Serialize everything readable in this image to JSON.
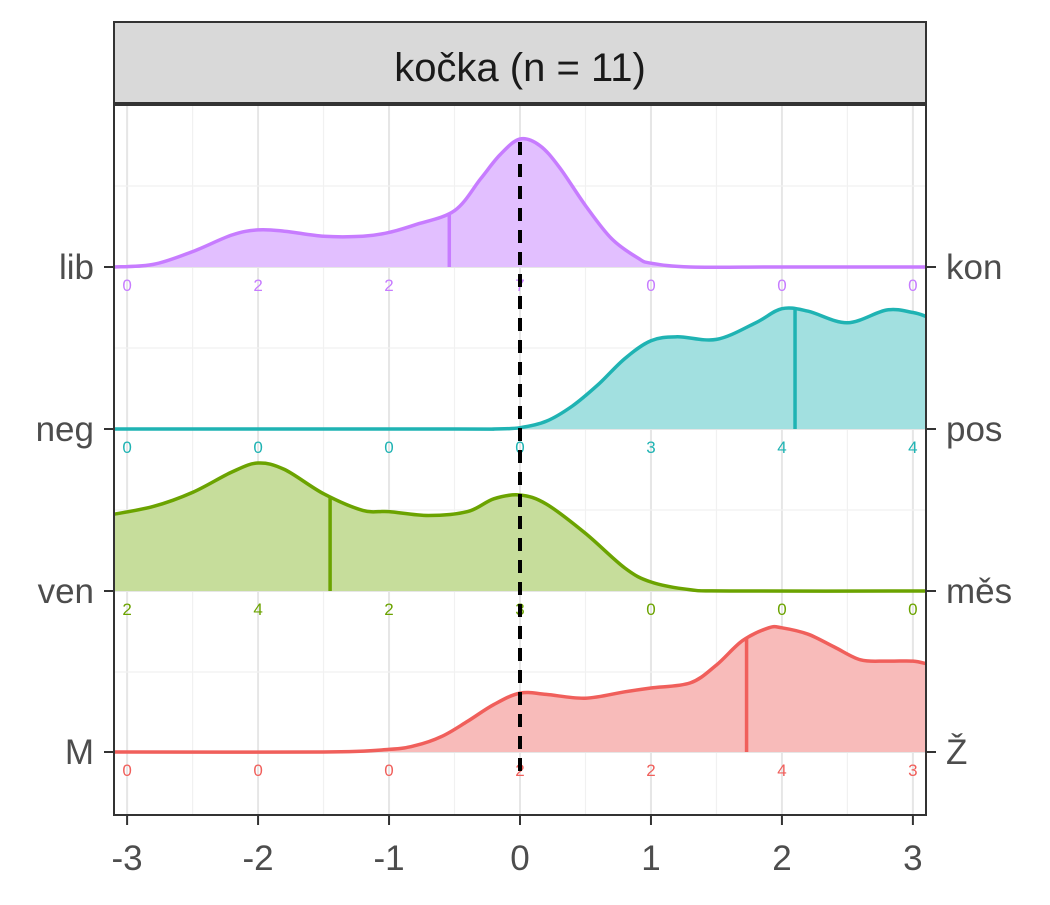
{
  "chart_data": {
    "type": "area",
    "title": "kočka (n = 11)",
    "xlabel": "",
    "ylabel": "",
    "xlim": [
      -3.1,
      3.1
    ],
    "x_ticks": [
      -3,
      -2,
      -1,
      0,
      1,
      2,
      3
    ],
    "x_tick_labels": [
      "-3",
      "-2",
      "-1",
      "0",
      "1",
      "2",
      "3"
    ],
    "reference_line_x": 0,
    "grid": true,
    "legend": "none",
    "count_positions": [
      -3,
      -2,
      -1,
      0,
      1,
      2,
      3
    ],
    "series": [
      {
        "left_label": "lib",
        "right_label": "kon",
        "color": "#C77CFF",
        "fill": "#E2BFFF",
        "mean": -0.54,
        "counts": [
          "0",
          "2",
          "2",
          "7",
          "0",
          "0",
          "0"
        ],
        "density_x": [
          -3.1,
          -2.8,
          -2.5,
          -2.2,
          -2.0,
          -1.8,
          -1.5,
          -1.2,
          -1.0,
          -0.8,
          -0.5,
          -0.3,
          -0.15,
          0.0,
          0.15,
          0.3,
          0.5,
          0.7,
          0.9,
          1.0,
          1.3,
          2.0,
          3.1
        ],
        "density_y": [
          0.0,
          0.02,
          0.12,
          0.25,
          0.29,
          0.28,
          0.24,
          0.24,
          0.27,
          0.33,
          0.44,
          0.69,
          0.88,
          1.0,
          0.95,
          0.78,
          0.48,
          0.22,
          0.07,
          0.03,
          0.0,
          0.0,
          0.0
        ]
      },
      {
        "left_label": "neg",
        "right_label": "pos",
        "color": "#1FB3B3",
        "fill": "#A2E0E0",
        "mean": 2.1,
        "counts": [
          "0",
          "0",
          "0",
          "0",
          "3",
          "4",
          "4"
        ],
        "density_x": [
          -3.1,
          -0.5,
          -0.2,
          0.0,
          0.2,
          0.4,
          0.6,
          0.8,
          1.0,
          1.2,
          1.5,
          1.8,
          2.0,
          2.2,
          2.5,
          2.8,
          3.0,
          3.1
        ],
        "density_y": [
          0.0,
          0.0,
          0.0,
          0.01,
          0.06,
          0.18,
          0.35,
          0.55,
          0.69,
          0.72,
          0.7,
          0.83,
          0.94,
          0.92,
          0.83,
          0.93,
          0.91,
          0.88
        ]
      },
      {
        "left_label": "ven",
        "right_label": "měs",
        "color": "#6BA300",
        "fill": "#C6DD9B",
        "mean": -1.45,
        "counts": [
          "2",
          "4",
          "2",
          "3",
          "0",
          "0",
          "0"
        ],
        "density_x": [
          -3.1,
          -2.8,
          -2.5,
          -2.2,
          -2.0,
          -1.8,
          -1.5,
          -1.2,
          -1.0,
          -0.7,
          -0.4,
          -0.2,
          0.0,
          0.2,
          0.5,
          0.8,
          1.0,
          1.3,
          1.6,
          3.1
        ],
        "density_y": [
          0.6,
          0.66,
          0.77,
          0.93,
          1.0,
          0.95,
          0.76,
          0.63,
          0.62,
          0.59,
          0.62,
          0.72,
          0.75,
          0.68,
          0.45,
          0.18,
          0.07,
          0.01,
          0.0,
          0.0
        ]
      },
      {
        "left_label": "M",
        "right_label": "Ž",
        "color": "#F05F5B",
        "fill": "#F8BBBA",
        "mean": 1.73,
        "counts": [
          "0",
          "0",
          "0",
          "2",
          "2",
          "4",
          "3"
        ],
        "density_x": [
          -3.1,
          -1.5,
          -1.0,
          -0.8,
          -0.6,
          -0.4,
          -0.2,
          0.0,
          0.2,
          0.5,
          0.8,
          1.0,
          1.3,
          1.5,
          1.7,
          1.9,
          2.0,
          2.2,
          2.4,
          2.6,
          2.8,
          3.0,
          3.1
        ],
        "density_y": [
          0.0,
          0.0,
          0.02,
          0.05,
          0.12,
          0.24,
          0.37,
          0.46,
          0.45,
          0.42,
          0.47,
          0.5,
          0.54,
          0.68,
          0.87,
          0.97,
          0.97,
          0.92,
          0.82,
          0.72,
          0.71,
          0.71,
          0.69
        ]
      }
    ]
  }
}
